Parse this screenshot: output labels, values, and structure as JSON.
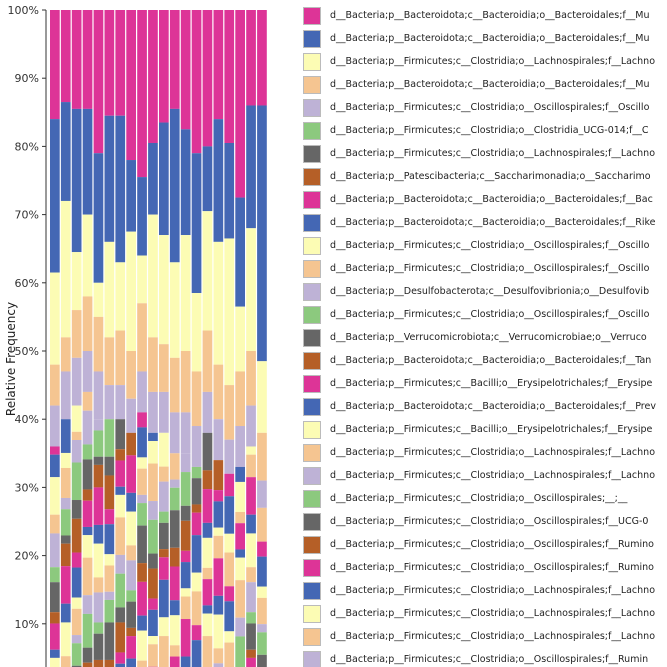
{
  "palette": [
    "#dd3497",
    "#4467b4",
    "#fcfcb4",
    "#f5c591",
    "#beb2d6",
    "#8cc97e",
    "#666666",
    "#b55f27"
  ],
  "chart_data": {
    "type": "bar",
    "stacked": true,
    "ylabel": "Relative Frequency",
    "ylim": [
      0,
      100
    ],
    "y_ticks": [
      "10%",
      "20%",
      "30%",
      "40%",
      "50%",
      "60%",
      "70%",
      "80%",
      "90%",
      "100%"
    ],
    "sample_count": 20,
    "top_segments": {
      "muribaculaceae_top": [
        84,
        86.5,
        85.5,
        85.5,
        79,
        84.5,
        84.5,
        78,
        75.5,
        80.5,
        83.5,
        85.5,
        82.5,
        79,
        80,
        84,
        80.5,
        72.5,
        86,
        86
      ],
      "bacteroidales_second": [
        61.5,
        72,
        64.5,
        70,
        60,
        66,
        63,
        67.5,
        64,
        70,
        67,
        63,
        67,
        58.5,
        70.5,
        66,
        66.5,
        56.5,
        68,
        48.5
      ],
      "firmicutes_lachnospirales": [
        48,
        52,
        56,
        58,
        55,
        52,
        53,
        50,
        57,
        52,
        51,
        49,
        50,
        47,
        53,
        48,
        45,
        47,
        50,
        38
      ],
      "firmicutes_muribaculaceae": [
        42,
        47,
        49,
        50,
        47,
        45,
        45,
        43,
        47,
        44,
        44,
        41,
        41,
        39,
        44,
        40,
        37,
        39,
        42,
        31
      ],
      "firmicutes_oscillospirales": [
        36,
        40,
        42,
        44,
        40,
        40,
        40,
        38,
        41,
        38,
        38,
        35,
        35,
        33,
        38,
        34,
        32,
        33,
        36,
        27
      ]
    },
    "lower_stack_colors": [
      0,
      1,
      2,
      3,
      4,
      5,
      6,
      7,
      0,
      1,
      2,
      3,
      4,
      5,
      6,
      7,
      0,
      1,
      2,
      3
    ],
    "series": [
      {
        "name": "d__Bacteria;p__Bacteroidota;c__Bacteroidia;o__Bacteroidales;f__Mu"
      },
      {
        "name": "d__Bacteria;p__Bacteroidota;c__Bacteroidia;o__Bacteroidales;f__Mu"
      },
      {
        "name": "d__Bacteria;p__Firmicutes;c__Clostridia;o__Lachnospirales;f__Lachno"
      },
      {
        "name": "d__Bacteria;p__Bacteroidota;c__Bacteroidia;o__Bacteroidales;f__Mu"
      },
      {
        "name": "d__Bacteria;p__Firmicutes;c__Clostridia;o__Oscillospirales;f__Oscillo"
      },
      {
        "name": "d__Bacteria;p__Firmicutes;c__Clostridia;o__Clostridia_UCG-014;f__C"
      },
      {
        "name": "d__Bacteria;p__Firmicutes;c__Clostridia;o__Lachnospirales;f__Lachno"
      },
      {
        "name": "d__Bacteria;p__Patescibacteria;c__Saccharimonadia;o__Saccharimo"
      },
      {
        "name": "d__Bacteria;p__Bacteroidota;c__Bacteroidia;o__Bacteroidales;f__Bac"
      },
      {
        "name": "d__Bacteria;p__Bacteroidota;c__Bacteroidia;o__Bacteroidales;f__Rike"
      },
      {
        "name": "d__Bacteria;p__Firmicutes;c__Clostridia;o__Oscillospirales;f__Oscillo"
      },
      {
        "name": "d__Bacteria;p__Firmicutes;c__Clostridia;o__Oscillospirales;f__Oscillo"
      },
      {
        "name": "d__Bacteria;p__Desulfobacterota;c__Desulfovibrionia;o__Desulfovib"
      },
      {
        "name": "d__Bacteria;p__Firmicutes;c__Clostridia;o__Oscillospirales;f__Oscillo"
      },
      {
        "name": "d__Bacteria;p__Verrucomicrobiota;c__Verrucomicrobiae;o__Verruco"
      },
      {
        "name": "d__Bacteria;p__Bacteroidota;c__Bacteroidia;o__Bacteroidales;f__Tan"
      },
      {
        "name": "d__Bacteria;p__Firmicutes;c__Bacilli;o__Erysipelotrichales;f__Erysipe"
      },
      {
        "name": "d__Bacteria;p__Bacteroidota;c__Bacteroidia;o__Bacteroidales;f__Prev"
      },
      {
        "name": "d__Bacteria;p__Firmicutes;c__Bacilli;o__Erysipelotrichales;f__Erysipe"
      },
      {
        "name": "d__Bacteria;p__Firmicutes;c__Clostridia;o__Lachnospirales;f__Lachno"
      },
      {
        "name": "d__Bacteria;p__Firmicutes;c__Clostridia;o__Lachnospirales;f__Lachno"
      },
      {
        "name": "d__Bacteria;p__Firmicutes;c__Clostridia;o__Oscillospirales;__;__"
      },
      {
        "name": "d__Bacteria;p__Firmicutes;c__Clostridia;o__Oscillospirales;f__UCG-0"
      },
      {
        "name": "d__Bacteria;p__Firmicutes;c__Clostridia;o__Oscillospirales;f__Rumino"
      },
      {
        "name": "d__Bacteria;p__Firmicutes;c__Clostridia;o__Oscillospirales;f__Rumino"
      },
      {
        "name": "d__Bacteria;p__Firmicutes;c__Clostridia;o__Lachnospirales;f__Lachno"
      },
      {
        "name": "d__Bacteria;p__Firmicutes;c__Clostridia;o__Lachnospirales;f__Lachno"
      },
      {
        "name": "d__Bacteria;p__Firmicutes;c__Clostridia;o__Lachnospirales;f__Lachno"
      },
      {
        "name": "d__Bacteria;p__Firmicutes;c__Clostridia;o__Oscillospirales;f__Rumin"
      }
    ]
  }
}
